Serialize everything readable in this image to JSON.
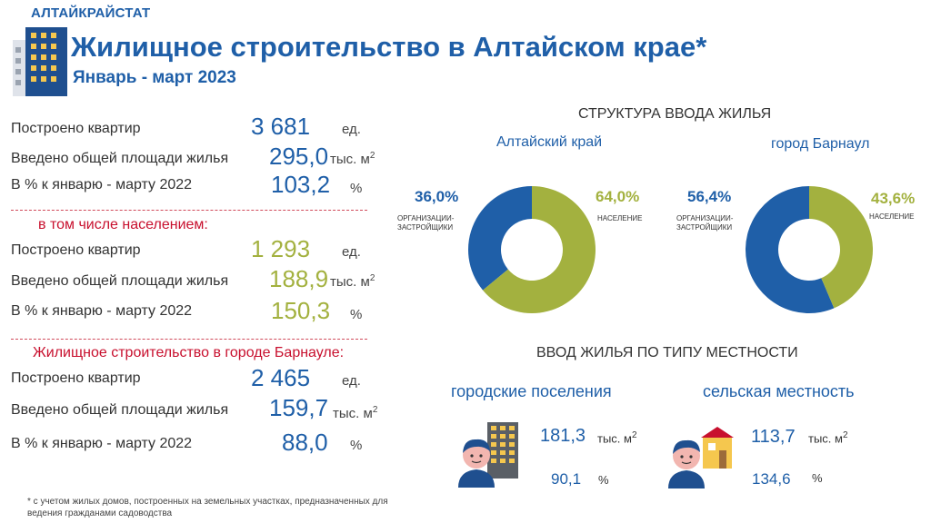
{
  "header": {
    "brand": "АЛТАЙКРАЙСТАТ",
    "title": "Жилищное строительство в Алтайском крае*",
    "subtitle": "Январь - март 2023"
  },
  "sections": {
    "total": {
      "rows": [
        {
          "label": "Построено квартир",
          "value": "3 681",
          "unit": "ед."
        },
        {
          "label": "Введено общей площади жилья",
          "value": "295,0",
          "unit": "тыс. м",
          "sup": "2"
        },
        {
          "label": "В % к январю - марту 2022",
          "value": "103,2",
          "unit": "%"
        }
      ]
    },
    "population": {
      "heading": "в том числе населением:",
      "rows": [
        {
          "label": "Построено квартир",
          "value": "1 293",
          "unit": "ед."
        },
        {
          "label": "Введено общей площади жилья",
          "value": "188,9",
          "unit": "тыс. м",
          "sup": "2"
        },
        {
          "label": "В % к январю - марту 2022",
          "value": "150,3",
          "unit": "%"
        }
      ]
    },
    "barnaul": {
      "heading": "Жилищное строительство в городе Барнауле:",
      "rows": [
        {
          "label": "Построено квартир",
          "value": "2 465",
          "unit": "ед."
        },
        {
          "label": "Введено общей площади жилья",
          "value": "159,7",
          "unit": "тыс. м",
          "sup": "2"
        },
        {
          "label": "В % к январю - марту 2022",
          "value": "88,0",
          "unit": "%"
        }
      ]
    }
  },
  "structure": {
    "title": "СТРУКТУРА ВВОДА ЖИЛЬЯ"
  },
  "chart_data": [
    {
      "type": "pie",
      "title": "Алтайский край",
      "categories": [
        "ОРГАНИЗАЦИИ-ЗАСТРОЙЩИКИ",
        "НАСЕЛЕНИЕ"
      ],
      "values": [
        36.0,
        64.0
      ],
      "labels": [
        "36,0%",
        "64,0%"
      ],
      "colors": [
        "#1f5fa8",
        "#a3b13f"
      ]
    },
    {
      "type": "pie",
      "title": "город Барнаул",
      "categories": [
        "ОРГАНИЗАЦИИ-ЗАСТРОЙЩИКИ",
        "НАСЕЛЕНИЕ"
      ],
      "values": [
        56.4,
        43.6
      ],
      "labels": [
        "56,4%",
        "43,6%"
      ],
      "colors": [
        "#1f5fa8",
        "#a3b13f"
      ]
    }
  ],
  "donut_labels": {
    "org_line1": "ОРГАНИЗАЦИИ-",
    "org_line2": "ЗАСТРОЙЩИКИ",
    "pop": "НАСЕЛЕНИЕ"
  },
  "locality": {
    "title": "ВВОД ЖИЛЬЯ ПО ТИПУ МЕСТНОСТИ",
    "urban": {
      "label": "городские поселения",
      "area": "181,3",
      "area_unit": "тыс. м",
      "sup": "2",
      "pct": "90,1",
      "pct_unit": "%"
    },
    "rural": {
      "label": "сельская местность",
      "area": "113,7",
      "area_unit": "тыс. м",
      "sup": "2",
      "pct": "134,6",
      "pct_unit": "%"
    }
  },
  "footnote": {
    "line1": "* с учетом жилых домов, построенных на земельных участках, предназначенных для",
    "line2": "ведения гражданами садоводства"
  },
  "colors": {
    "primary": "#1f5fa8",
    "accent": "#a3b13f",
    "alert": "#c8102e"
  },
  "icons": {
    "logo": "building-icon",
    "urban": "person-apartment-icon",
    "rural": "person-house-icon"
  }
}
